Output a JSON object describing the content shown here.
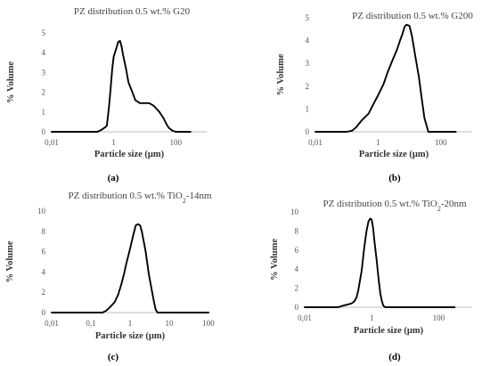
{
  "chart_data": [
    {
      "type": "line",
      "panel": "(a)",
      "title_main": "PZ distribution 0.5 wt.% G20",
      "title_sub": "",
      "title_tail": "",
      "xlabel": "Particle size (μm)",
      "ylabel": "% Volume",
      "xscale": "log",
      "xlim": [
        0.01,
        1000
      ],
      "xticks": [
        0.01,
        1,
        100
      ],
      "xticklabels": [
        "0,01",
        "1",
        "100"
      ],
      "ylim": [
        0,
        5
      ],
      "yticks": [
        0,
        1,
        2,
        3,
        4,
        5
      ],
      "grid": false,
      "series": [
        {
          "x": [
            0.01,
            0.3,
            0.35,
            0.4,
            0.5,
            0.6,
            0.7,
            0.8,
            0.9,
            1.0,
            1.2,
            1.4,
            1.6,
            1.8,
            2.0,
            2.5,
            3.0,
            4.0,
            5.0,
            7.0,
            10.0,
            14.0,
            20.0,
            30.0,
            40.0,
            50.0,
            60.0,
            80.0,
            100.0,
            300.0
          ],
          "y": [
            0,
            0,
            0.05,
            0.1,
            0.2,
            0.3,
            1.2,
            2.2,
            3.2,
            3.8,
            4.2,
            4.55,
            4.6,
            4.3,
            3.9,
            3.2,
            2.5,
            2.0,
            1.6,
            1.45,
            1.45,
            1.45,
            1.3,
            1.0,
            0.7,
            0.4,
            0.2,
            0.05,
            0,
            0
          ]
        }
      ]
    },
    {
      "type": "line",
      "panel": "(b)",
      "title_main": "PZ distribution 0.5 wt.% G200",
      "title_sub": "",
      "title_tail": "",
      "xlabel": "Particle size (μm)",
      "ylabel": "% Volume",
      "xscale": "log",
      "xlim": [
        0.01,
        1000
      ],
      "xticks": [
        0.01,
        1,
        100
      ],
      "xticklabels": [
        "0,01",
        "1",
        "100"
      ],
      "ylim": [
        0,
        5
      ],
      "yticks": [
        0,
        1,
        2,
        3,
        4,
        5
      ],
      "grid": false,
      "series": [
        {
          "x": [
            0.01,
            0.1,
            0.15,
            0.2,
            0.3,
            0.5,
            0.7,
            1.0,
            1.5,
            2.0,
            3.0,
            4.0,
            5.0,
            6.0,
            7.0,
            8.0,
            10.0,
            12.0,
            15.0,
            20.0,
            25.0,
            30.0,
            40.0,
            300.0
          ],
          "y": [
            0,
            0,
            0.05,
            0.2,
            0.5,
            0.8,
            1.2,
            1.6,
            2.1,
            2.6,
            3.2,
            3.6,
            4.0,
            4.3,
            4.6,
            4.7,
            4.65,
            4.2,
            3.4,
            2.4,
            1.4,
            0.6,
            0,
            0
          ]
        }
      ]
    },
    {
      "type": "line",
      "panel": "(c)",
      "title_main": "PZ distribution 0.5 wt.% TiO",
      "title_sub": "2",
      "title_tail": "-14nm",
      "xlabel": "Particle size (μm)",
      "ylabel": "% Volume",
      "xscale": "log",
      "xlim": [
        0.01,
        100
      ],
      "xticks": [
        0.01,
        0.1,
        1,
        10,
        100
      ],
      "xticklabels": [
        "0,01",
        "0,1",
        "1",
        "10",
        "100"
      ],
      "ylim": [
        0,
        10
      ],
      "yticks": [
        0,
        2,
        4,
        6,
        8,
        10
      ],
      "grid": false,
      "series": [
        {
          "x": [
            0.01,
            0.2,
            0.25,
            0.3,
            0.4,
            0.5,
            0.6,
            0.7,
            0.8,
            0.9,
            1.0,
            1.2,
            1.4,
            1.6,
            1.8,
            2.0,
            2.5,
            3.0,
            4.0,
            4.5,
            5.0,
            100.0
          ],
          "y": [
            0,
            0,
            0.2,
            0.5,
            1.0,
            1.8,
            2.8,
            3.8,
            4.8,
            5.6,
            6.3,
            7.6,
            8.6,
            8.7,
            8.6,
            8.0,
            6.0,
            3.8,
            1.2,
            0.3,
            0,
            0
          ]
        }
      ]
    },
    {
      "type": "line",
      "panel": "(d)",
      "title_main": "PZ distribution 0.5 wt.%  TiO",
      "title_sub": "2",
      "title_tail": "-20nm",
      "xlabel": "Particle size (μm)",
      "ylabel": "% Volume",
      "xscale": "log",
      "xlim": [
        0.01,
        1000
      ],
      "xticks": [
        0.01,
        1,
        100
      ],
      "xticklabels": [
        "0,01",
        "1",
        "100"
      ],
      "ylim": [
        0,
        10
      ],
      "yticks": [
        0,
        2,
        4,
        6,
        8,
        10
      ],
      "grid": false,
      "series": [
        {
          "x": [
            0.01,
            0.1,
            0.15,
            0.2,
            0.25,
            0.3,
            0.35,
            0.4,
            0.5,
            0.6,
            0.7,
            0.8,
            0.9,
            1.0,
            1.1,
            1.2,
            1.4,
            1.6,
            1.8,
            2.0,
            2.2,
            2.5,
            300.0
          ],
          "y": [
            0,
            0,
            0.2,
            0.3,
            0.4,
            0.6,
            1.0,
            1.8,
            3.8,
            6.3,
            8.0,
            9.0,
            9.3,
            9.2,
            8.3,
            7.0,
            5.0,
            3.0,
            1.5,
            0.7,
            0.2,
            0,
            0
          ]
        }
      ]
    }
  ]
}
